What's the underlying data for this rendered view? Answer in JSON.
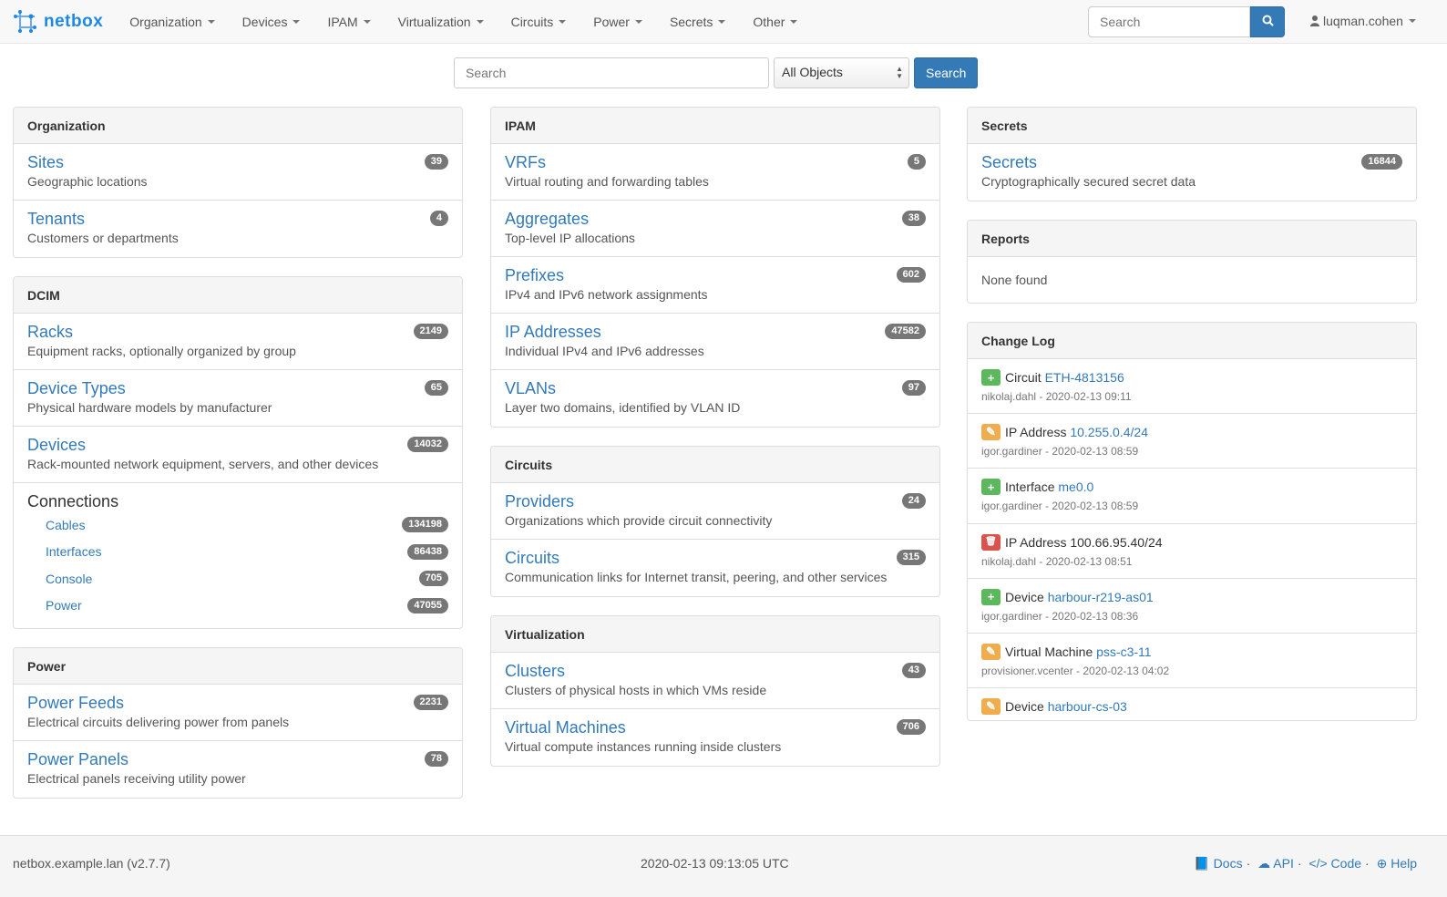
{
  "navbar": {
    "brand": "netbox",
    "menus": [
      "Organization",
      "Devices",
      "IPAM",
      "Virtualization",
      "Circuits",
      "Power",
      "Secrets",
      "Other"
    ],
    "search_placeholder": "Search",
    "user": "luqman.cohen",
    "brand_color": "#1e88e5"
  },
  "search": {
    "placeholder": "Search",
    "scope": "All Objects",
    "button": "Search"
  },
  "columns": [
    [
      {
        "title": "Organization",
        "items": [
          {
            "name": "Sites",
            "desc": "Geographic locations",
            "count": "39"
          },
          {
            "name": "Tenants",
            "desc": "Customers or departments",
            "count": "4"
          }
        ]
      },
      {
        "title": "DCIM",
        "items": [
          {
            "name": "Racks",
            "desc": "Equipment racks, optionally organized by group",
            "count": "2149"
          },
          {
            "name": "Device Types",
            "desc": "Physical hardware models by manufacturer",
            "count": "65"
          },
          {
            "name": "Devices",
            "desc": "Rack-mounted network equipment, servers, and other devices",
            "count": "14032"
          }
        ],
        "connections": {
          "title": "Connections",
          "items": [
            {
              "name": "Cables",
              "count": "134198"
            },
            {
              "name": "Interfaces",
              "count": "86438"
            },
            {
              "name": "Console",
              "count": "705"
            },
            {
              "name": "Power",
              "count": "47055"
            }
          ]
        }
      },
      {
        "title": "Power",
        "items": [
          {
            "name": "Power Feeds",
            "desc": "Electrical circuits delivering power from panels",
            "count": "2231"
          },
          {
            "name": "Power Panels",
            "desc": "Electrical panels receiving utility power",
            "count": "78"
          }
        ]
      }
    ],
    [
      {
        "title": "IPAM",
        "items": [
          {
            "name": "VRFs",
            "desc": "Virtual routing and forwarding tables",
            "count": "5"
          },
          {
            "name": "Aggregates",
            "desc": "Top-level IP allocations",
            "count": "38"
          },
          {
            "name": "Prefixes",
            "desc": "IPv4 and IPv6 network assignments",
            "count": "602"
          },
          {
            "name": "IP Addresses",
            "desc": "Individual IPv4 and IPv6 addresses",
            "count": "47582"
          },
          {
            "name": "VLANs",
            "desc": "Layer two domains, identified by VLAN ID",
            "count": "97"
          }
        ]
      },
      {
        "title": "Circuits",
        "items": [
          {
            "name": "Providers",
            "desc": "Organizations which provide circuit connectivity",
            "count": "24"
          },
          {
            "name": "Circuits",
            "desc": "Communication links for Internet transit, peering, and other services",
            "count": "315"
          }
        ]
      },
      {
        "title": "Virtualization",
        "items": [
          {
            "name": "Clusters",
            "desc": "Clusters of physical hosts in which VMs reside",
            "count": "43"
          },
          {
            "name": "Virtual Machines",
            "desc": "Virtual compute instances running inside clusters",
            "count": "706"
          }
        ]
      }
    ],
    [
      {
        "title": "Secrets",
        "items": [
          {
            "name": "Secrets",
            "desc": "Cryptographically secured secret data",
            "count": "16844"
          }
        ]
      },
      {
        "title": "Reports",
        "none": "None found"
      },
      {
        "title": "Change Log",
        "changelog": [
          {
            "action": "create",
            "type": "Circuit",
            "object": "ETH-4813156",
            "link": true,
            "meta": "nikolaj.dahl - 2020-02-13 09:11"
          },
          {
            "action": "update",
            "type": "IP Address",
            "object": "10.255.0.4/24",
            "link": true,
            "meta": "igor.gardiner - 2020-02-13 08:59"
          },
          {
            "action": "create",
            "type": "Interface",
            "object": "me0.0",
            "link": true,
            "meta": "igor.gardiner - 2020-02-13 08:59"
          },
          {
            "action": "delete",
            "type": "IP Address",
            "object": "100.66.95.40/24",
            "link": false,
            "meta": "nikolaj.dahl - 2020-02-13 08:51"
          },
          {
            "action": "create",
            "type": "Device",
            "object": "harbour-r219-as01",
            "link": true,
            "meta": "igor.gardiner - 2020-02-13 08:36"
          },
          {
            "action": "update",
            "type": "Virtual Machine",
            "object": "pss-c3-11",
            "link": true,
            "meta": "provisioner.vcenter - 2020-02-13 04:02"
          },
          {
            "action": "update",
            "type": "Device",
            "object": "harbour-cs-03",
            "link": true,
            "meta": ""
          }
        ]
      }
    ]
  ],
  "action_colors": {
    "create": "#5cb85c",
    "update": "#f0ad4e",
    "delete": "#d9534f"
  },
  "footer": {
    "host": "netbox.example.lan (v2.7.7)",
    "time": "2020-02-13 09:13:05 UTC",
    "links": [
      "Docs",
      "API",
      "Code",
      "Help"
    ]
  }
}
